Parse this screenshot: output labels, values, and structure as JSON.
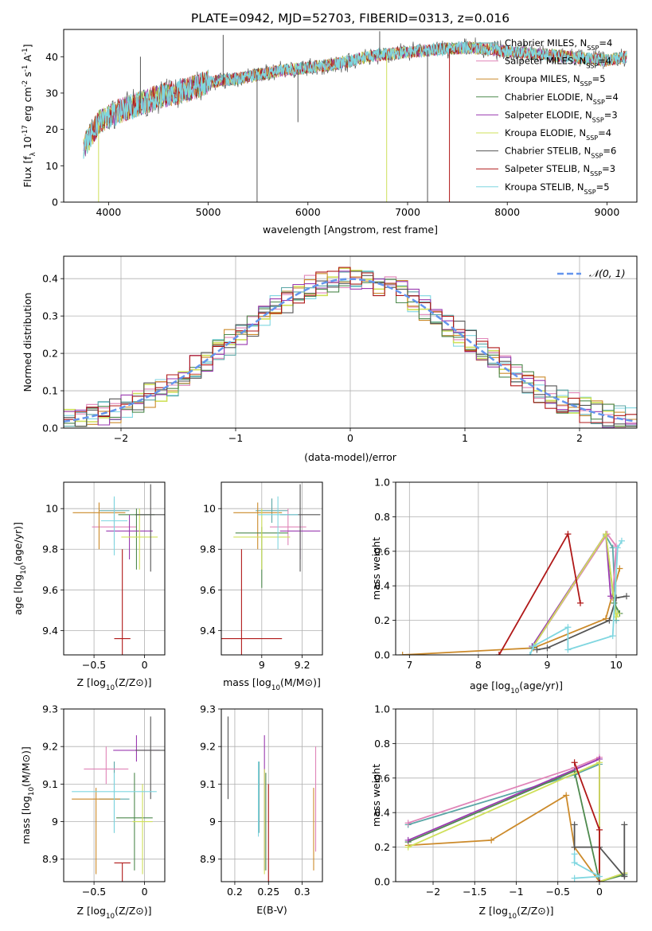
{
  "title": "PLATE=0942, MJD=52703, FIBERID=0313, z=0.016",
  "models": [
    {
      "name": "Chabrier MILES, N$_{SSP}$=4",
      "label": "Chabrier MILES, N",
      "sub": "SSP",
      "n": "=4",
      "color": "#5aa6a6"
    },
    {
      "name": "Salpeter MILES, N$_{SSP}$=4",
      "label": "Salpeter MILES, N",
      "sub": "SSP",
      "n": "=4",
      "color": "#e084b8"
    },
    {
      "name": "Kroupa MILES, N$_{SSP}$=5",
      "label": "Kroupa MILES, N",
      "sub": "SSP",
      "n": "=5",
      "color": "#cc8a2a"
    },
    {
      "name": "Chabrier ELODIE, N$_{SSP}$=4",
      "label": "Chabrier ELODIE, N",
      "sub": "SSP",
      "n": "=4",
      "color": "#4e8a4e"
    },
    {
      "name": "Salpeter ELODIE, N$_{SSP}$=3",
      "label": "Salpeter ELODIE, N",
      "sub": "SSP",
      "n": "=3",
      "color": "#9a3ab0"
    },
    {
      "name": "Kroupa ELODIE, N$_{SSP}$=4",
      "label": "Kroupa ELODIE, N",
      "sub": "SSP",
      "n": "=4",
      "color": "#cfe05a"
    },
    {
      "name": "Chabrier STELIB, N$_{SSP}$=6",
      "label": "Chabrier STELIB, N",
      "sub": "SSP",
      "n": "=6",
      "color": "#555555"
    },
    {
      "name": "Salpeter STELIB, N$_{SSP}$=3",
      "label": "Salpeter STELIB, N",
      "sub": "SSP",
      "n": "=3",
      "color": "#b01818"
    },
    {
      "name": "Kroupa STELIB, N$_{SSP}$=5",
      "label": "Kroupa STELIB, N",
      "sub": "SSP",
      "n": "=5",
      "color": "#7fd6e0"
    }
  ],
  "chart_data": [
    {
      "id": "spectrum",
      "type": "line",
      "title": "PLATE=0942, MJD=52703, FIBERID=0313, z=0.016",
      "xlabel": "wavelength [Angstrom, rest frame]",
      "ylabel": "Flux [f_λ 10^-17 erg cm^-2 s^-1 A^-1]",
      "xlim": [
        3550,
        9300
      ],
      "ylim": [
        0,
        47.5
      ],
      "xticks": [
        4000,
        5000,
        6000,
        7000,
        8000,
        9000
      ],
      "yticks": [
        0,
        10,
        20,
        30,
        40
      ],
      "continuum": [
        [
          3750,
          15
        ],
        [
          3900,
          22
        ],
        [
          4100,
          25
        ],
        [
          4300,
          27
        ],
        [
          4500,
          29
        ],
        [
          4800,
          31
        ],
        [
          5000,
          33
        ],
        [
          5300,
          34
        ],
        [
          5700,
          36
        ],
        [
          6000,
          37
        ],
        [
          6300,
          38
        ],
        [
          6600,
          40
        ],
        [
          6900,
          41
        ],
        [
          7300,
          42
        ],
        [
          7600,
          42.5
        ],
        [
          7800,
          42
        ],
        [
          8200,
          41
        ],
        [
          8600,
          40
        ],
        [
          9000,
          39
        ],
        [
          9200,
          40
        ]
      ],
      "spikes": [
        {
          "x": 3900,
          "y": 0,
          "model": 5
        },
        {
          "x": 5490,
          "y": 0,
          "model": 6
        },
        {
          "x": 6790,
          "y": 0,
          "model": 5
        },
        {
          "x": 7200,
          "y": 0,
          "model": 6
        },
        {
          "x": 7420,
          "y": 0,
          "model": 7
        },
        {
          "x": 6720,
          "y": 47,
          "model": 6
        },
        {
          "x": 5150,
          "y": 46,
          "model": 6
        },
        {
          "x": 4320,
          "y": 40,
          "model": 6
        },
        {
          "x": 5900,
          "y": 22,
          "model": 6
        }
      ],
      "legend_loc": "upper right"
    },
    {
      "id": "residuals",
      "type": "step",
      "xlabel": "(data-model)/error",
      "ylabel": "Normed distribution",
      "xlim": [
        -2.5,
        2.5
      ],
      "ylim": [
        0,
        0.46
      ],
      "xticks": [
        -2,
        -1,
        0,
        1,
        2
      ],
      "yticks": [
        0.0,
        0.1,
        0.2,
        0.3,
        0.4
      ],
      "bin_width": 0.1,
      "reference": {
        "label": "N(0,1)",
        "mu": 0,
        "sigma": 1,
        "color": "#6495ed"
      },
      "legend_loc": "upper right"
    },
    {
      "id": "age-vs-Z",
      "type": "errorbar",
      "xlabel": "Z [log10(Z/Z⊙)]",
      "ylabel": "age  [log10(age/yr)]",
      "xlim": [
        -0.8,
        0.2
      ],
      "ylim": [
        9.28,
        10.13
      ],
      "xticks": [
        -0.5,
        0.0
      ],
      "yticks": [
        9.4,
        9.6,
        9.8,
        10.0
      ],
      "points": [
        {
          "model": 0,
          "x": -0.3,
          "xerr": 0.15,
          "y": 9.99,
          "yerr": [
            0.06,
            0.06
          ]
        },
        {
          "model": 1,
          "x": -0.3,
          "xerr": 0.22,
          "y": 9.91,
          "yerr": [
            0.09,
            0.09
          ]
        },
        {
          "model": 2,
          "x": -0.45,
          "xerr": 0.26,
          "y": 9.98,
          "yerr": [
            0.18,
            0.05
          ]
        },
        {
          "model": 3,
          "x": -0.08,
          "xerr": 0.18,
          "y": 9.97,
          "yerr": [
            0.27,
            0.03
          ]
        },
        {
          "model": 4,
          "x": -0.15,
          "xerr": 0.23,
          "y": 9.89,
          "yerr": [
            0.14,
            0.08
          ]
        },
        {
          "model": 5,
          "x": -0.05,
          "xerr": 0.18,
          "y": 9.86,
          "yerr": [
            0.16,
            0.14
          ]
        },
        {
          "model": 6,
          "x": 0.06,
          "xerr": 0.15,
          "y": 9.97,
          "yerr": [
            0.28,
            0.15
          ]
        },
        {
          "model": 7,
          "x": -0.22,
          "xerr": 0.08,
          "y": 9.36,
          "yerr": [
            0.08,
            0.44
          ]
        },
        {
          "model": 8,
          "x": -0.3,
          "xerr": 0.13,
          "y": 9.94,
          "yerr": [
            0.17,
            0.12
          ]
        }
      ]
    },
    {
      "id": "age-vs-mass",
      "type": "errorbar",
      "xlabel": "mass [log10(M/M⊙)]",
      "ylabel": "",
      "xlim": [
        8.8,
        9.3
      ],
      "ylim": [
        9.28,
        10.13
      ],
      "xticks": [
        9.0,
        9.2
      ],
      "yticks": [
        9.4,
        9.6,
        9.8,
        10.0
      ],
      "points": [
        {
          "model": 0,
          "x": 9.05,
          "xerr": 0.08,
          "y": 9.99,
          "yerr": [
            0.06,
            0.06
          ]
        },
        {
          "model": 1,
          "x": 9.13,
          "xerr": 0.09,
          "y": 9.91,
          "yerr": [
            0.09,
            0.09
          ]
        },
        {
          "model": 2,
          "x": 8.98,
          "xerr": 0.12,
          "y": 9.98,
          "yerr": [
            0.18,
            0.05
          ]
        },
        {
          "model": 3,
          "x": 9.0,
          "xerr": 0.13,
          "y": 9.88,
          "yerr": [
            0.27,
            0.03
          ]
        },
        {
          "model": 4,
          "x": 9.19,
          "xerr": 0.1,
          "y": 9.89,
          "yerr": [
            0.14,
            0.08
          ]
        },
        {
          "model": 5,
          "x": 9.0,
          "xerr": 0.14,
          "y": 9.86,
          "yerr": [
            0.16,
            0.14
          ]
        },
        {
          "model": 6,
          "x": 9.19,
          "xerr": 0.1,
          "y": 9.97,
          "yerr": [
            0.28,
            0.15
          ]
        },
        {
          "model": 7,
          "x": 8.9,
          "xerr": 0.2,
          "y": 9.36,
          "yerr": [
            0.08,
            0.44
          ]
        },
        {
          "model": 8,
          "x": 9.08,
          "xerr": 0.1,
          "y": 9.97,
          "yerr": [
            0.17,
            0.09
          ]
        }
      ]
    },
    {
      "id": "weight-vs-age",
      "type": "line",
      "xlabel": "age  [log10(age/yr)]",
      "ylabel": "mass weight",
      "xlim": [
        6.8,
        10.3
      ],
      "ylim": [
        0,
        1.0
      ],
      "xticks": [
        7,
        8,
        9,
        10
      ],
      "yticks": [
        0.0,
        0.2,
        0.4,
        0.6,
        0.8,
        1.0
      ],
      "series": [
        {
          "model": 2,
          "points": [
            [
              6.9,
              0.0
            ],
            [
              8.8,
              0.04
            ],
            [
              9.85,
              0.21
            ],
            [
              10.05,
              0.5
            ]
          ]
        },
        {
          "model": 0,
          "points": [
            [
              8.8,
              0.05
            ],
            [
              9.85,
              0.69
            ],
            [
              9.95,
              0.62
            ],
            [
              10.0,
              0.2
            ]
          ]
        },
        {
          "model": 1,
          "points": [
            [
              8.8,
              0.05
            ],
            [
              9.87,
              0.7
            ],
            [
              10.0,
              0.63
            ],
            [
              9.95,
              0.33
            ]
          ]
        },
        {
          "model": 3,
          "points": [
            [
              8.78,
              0.04
            ],
            [
              9.85,
              0.7
            ],
            [
              9.97,
              0.3
            ],
            [
              10.05,
              0.24
            ]
          ]
        },
        {
          "model": 4,
          "points": [
            [
              8.78,
              0.05
            ],
            [
              9.85,
              0.7
            ],
            [
              9.92,
              0.34
            ]
          ]
        },
        {
          "model": 5,
          "points": [
            [
              8.8,
              0.05
            ],
            [
              9.85,
              0.7
            ],
            [
              10.0,
              0.22
            ],
            [
              10.02,
              0.24
            ]
          ]
        },
        {
          "model": 6,
          "points": [
            [
              8.85,
              0.03
            ],
            [
              9.0,
              0.04
            ],
            [
              9.9,
              0.2
            ],
            [
              10.0,
              0.33
            ],
            [
              10.15,
              0.34
            ]
          ]
        },
        {
          "model": 7,
          "points": [
            [
              8.3,
              0.0
            ],
            [
              9.3,
              0.7
            ],
            [
              9.48,
              0.3
            ]
          ]
        },
        {
          "model": 8,
          "points": [
            [
              8.75,
              0.0
            ],
            [
              8.8,
              0.05
            ],
            [
              9.3,
              0.16
            ],
            [
              9.3,
              0.03
            ],
            [
              9.95,
              0.11
            ],
            [
              10.02,
              0.62
            ],
            [
              10.08,
              0.66
            ]
          ]
        }
      ]
    },
    {
      "id": "mass-vs-Z",
      "type": "errorbar",
      "xlabel": "Z [log10(Z/Z⊙)]",
      "ylabel": "mass [log10(M/M⊙)]",
      "xlim": [
        -0.8,
        0.2
      ],
      "ylim": [
        8.84,
        9.3
      ],
      "xticks": [
        -0.5,
        0.0
      ],
      "yticks": [
        8.9,
        9.0,
        9.1,
        9.2,
        9.3
      ],
      "points": [
        {
          "model": 0,
          "x": -0.3,
          "xerr": 0.15,
          "y": 9.06,
          "yerr": [
            0.09,
            0.1
          ]
        },
        {
          "model": 1,
          "x": -0.38,
          "xerr": 0.22,
          "y": 9.14,
          "yerr": [
            0.04,
            0.06
          ]
        },
        {
          "model": 2,
          "x": -0.48,
          "xerr": 0.24,
          "y": 9.06,
          "yerr": [
            0.2,
            0.03
          ]
        },
        {
          "model": 3,
          "x": -0.1,
          "xerr": 0.18,
          "y": 9.01,
          "yerr": [
            0.14,
            0.12
          ]
        },
        {
          "model": 4,
          "x": -0.08,
          "xerr": 0.23,
          "y": 9.19,
          "yerr": [
            0.03,
            0.04
          ]
        },
        {
          "model": 5,
          "x": -0.02,
          "xerr": 0.1,
          "y": 9.0,
          "yerr": [
            0.14,
            0.1
          ]
        },
        {
          "model": 6,
          "x": 0.06,
          "xerr": 0.15,
          "y": 9.19,
          "yerr": [
            0.13,
            0.09
          ]
        },
        {
          "model": 7,
          "x": -0.22,
          "xerr": 0.08,
          "y": 8.89,
          "yerr": [
            0.05,
            0.0
          ]
        },
        {
          "model": 8,
          "x": -0.3,
          "xerr": 0.42,
          "y": 9.08,
          "yerr": [
            0.11,
            0.05
          ]
        }
      ]
    },
    {
      "id": "mass-vs-EBV",
      "type": "errorbar",
      "xlabel": "E(B-V)",
      "ylabel": "",
      "xlim": [
        0.18,
        0.33
      ],
      "ylim": [
        8.84,
        9.3
      ],
      "xticks": [
        0.2,
        0.25,
        0.3
      ],
      "yticks": [
        8.9,
        9.0,
        9.1,
        9.2,
        9.3
      ],
      "points": [
        {
          "model": 0,
          "x": 0.236,
          "y": 9.06,
          "yerr": [
            0.09,
            0.1
          ]
        },
        {
          "model": 1,
          "x": 0.32,
          "y": 9.06,
          "yerr": [
            0.14,
            0.14
          ]
        },
        {
          "model": 2,
          "x": 0.317,
          "y": 8.98,
          "yerr": [
            0.11,
            0.11
          ]
        },
        {
          "model": 3,
          "x": 0.246,
          "y": 9.0,
          "yerr": [
            0.13,
            0.13
          ]
        },
        {
          "model": 4,
          "x": 0.244,
          "y": 9.05,
          "yerr": [
            0.18,
            0.18
          ]
        },
        {
          "model": 5,
          "x": 0.244,
          "y": 9.0,
          "yerr": [
            0.14,
            0.14
          ]
        },
        {
          "model": 6,
          "x": 0.19,
          "y": 9.17,
          "yerr": [
            0.11,
            0.11
          ]
        },
        {
          "model": 7,
          "x": 0.25,
          "y": 8.97,
          "yerr": [
            0.13,
            0.13
          ]
        },
        {
          "model": 8,
          "x": 0.235,
          "y": 9.06,
          "yerr": [
            0.1,
            0.1
          ]
        }
      ]
    },
    {
      "id": "weight-vs-Z",
      "type": "line",
      "xlabel": "Z [log10(Z/Z⊙)]",
      "ylabel": "mass weight",
      "xlim": [
        -2.45,
        0.45
      ],
      "ylim": [
        0,
        1.0
      ],
      "xticks": [
        -2.0,
        -1.5,
        -1.0,
        -0.5,
        0.0
      ],
      "yticks": [
        0.0,
        0.2,
        0.4,
        0.6,
        0.8,
        1.0
      ],
      "series": [
        {
          "model": 2,
          "points": [
            [
              -2.3,
              0.21
            ],
            [
              -1.3,
              0.24
            ],
            [
              -0.4,
              0.5
            ],
            [
              -0.3,
              0.2
            ],
            [
              0.0,
              0.0
            ],
            [
              0.3,
              0.05
            ]
          ]
        },
        {
          "model": 0,
          "points": [
            [
              -2.3,
              0.33
            ],
            [
              -0.3,
              0.62
            ],
            [
              0.0,
              0.68
            ],
            [
              0.0,
              0.0
            ]
          ]
        },
        {
          "model": 1,
          "points": [
            [
              -2.3,
              0.34
            ],
            [
              -0.3,
              0.66
            ],
            [
              0.0,
              0.72
            ],
            [
              0.0,
              0.0
            ]
          ]
        },
        {
          "model": 3,
          "points": [
            [
              -2.3,
              0.23
            ],
            [
              -0.3,
              0.64
            ],
            [
              0.0,
              0.0
            ],
            [
              0.3,
              0.04
            ]
          ]
        },
        {
          "model": 4,
          "points": [
            [
              -2.3,
              0.24
            ],
            [
              0.0,
              0.71
            ],
            [
              0.0,
              0.0
            ]
          ]
        },
        {
          "model": 5,
          "points": [
            [
              -2.3,
              0.2
            ],
            [
              0.0,
              0.69
            ],
            [
              0.0,
              0.0
            ],
            [
              0.3,
              0.05
            ]
          ]
        },
        {
          "model": 6,
          "points": [
            [
              -0.3,
              0.33
            ],
            [
              -0.3,
              0.2
            ],
            [
              0.0,
              0.2
            ],
            [
              0.3,
              0.03
            ],
            [
              0.3,
              0.33
            ]
          ]
        },
        {
          "model": 7,
          "points": [
            [
              -0.3,
              0.69
            ],
            [
              0.0,
              0.3
            ],
            [
              0.0,
              0.0
            ]
          ]
        },
        {
          "model": 8,
          "points": [
            [
              -0.3,
              0.16
            ],
            [
              -0.3,
              0.11
            ],
            [
              0.0,
              0.03
            ],
            [
              -0.3,
              0.02
            ]
          ]
        }
      ]
    }
  ]
}
